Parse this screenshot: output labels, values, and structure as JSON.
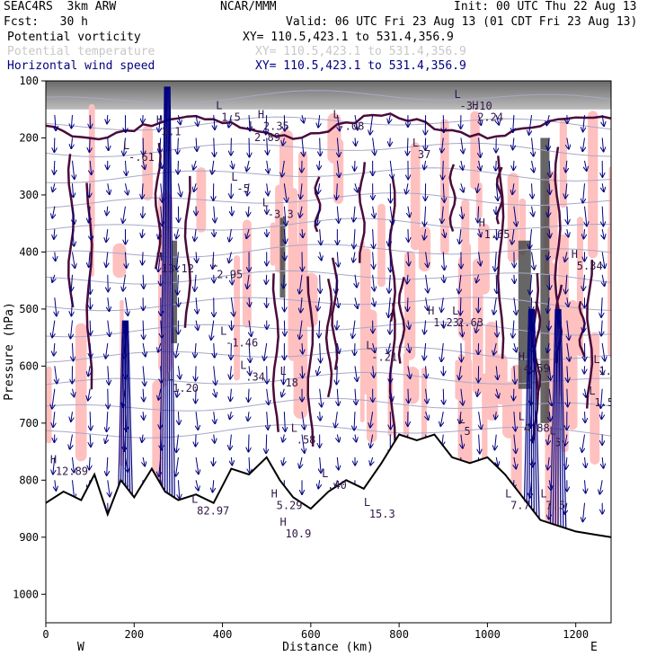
{
  "header": {
    "model": "SEAC4RS  3km ARW",
    "forecast": "Fcst:   30 h",
    "center": "NCAR/MMM",
    "init": "Init: 00 UTC Thu 22 Aug 13",
    "valid": "Valid: 06 UTC Fri 23 Aug 13 (01 CDT Fri 23 Aug 13)"
  },
  "legend": [
    {
      "name": "Potential vorticity",
      "xy": "XY= 110.5,423.1 to 531.4,356.9",
      "color": "#000000"
    },
    {
      "name": "Potential temperature",
      "xy": "XY= 110.5,423.1 to 531.4,356.9",
      "color": "#c8c8c8"
    },
    {
      "name": "Horizontal wind speed",
      "xy": "XY= 110.5,423.1 to 531.4,356.9",
      "color": "#000080"
    }
  ],
  "colors": {
    "pv_positive": "#ffc0c0",
    "pv_contour": "#4a0a3a",
    "theta_contour": "#a8a8c8",
    "wind_vector": "#000080",
    "terrain": "#000000"
  },
  "chart_data": {
    "type": "cross-section",
    "xlabel": "Distance (km)",
    "ylabel": "Pressure (hPa)",
    "xlim": [
      0,
      1280
    ],
    "ylim": [
      1050,
      100
    ],
    "x_ticks": [
      0,
      200,
      400,
      600,
      800,
      1000,
      1200
    ],
    "y_ticks": [
      100,
      200,
      300,
      400,
      500,
      600,
      700,
      800,
      900,
      1000
    ],
    "x_end_labels": {
      "left": "W",
      "right": "E"
    },
    "terrain_surface_hpa": [
      [
        0,
        840
      ],
      [
        40,
        820
      ],
      [
        80,
        835
      ],
      [
        110,
        790
      ],
      [
        140,
        860
      ],
      [
        170,
        800
      ],
      [
        200,
        830
      ],
      [
        240,
        780
      ],
      [
        270,
        820
      ],
      [
        300,
        835
      ],
      [
        340,
        825
      ],
      [
        380,
        840
      ],
      [
        420,
        780
      ],
      [
        460,
        790
      ],
      [
        500,
        760
      ],
      [
        530,
        800
      ],
      [
        560,
        830
      ],
      [
        600,
        850
      ],
      [
        640,
        820
      ],
      [
        680,
        800
      ],
      [
        720,
        815
      ],
      [
        760,
        770
      ],
      [
        800,
        720
      ],
      [
        840,
        730
      ],
      [
        880,
        720
      ],
      [
        920,
        760
      ],
      [
        960,
        770
      ],
      [
        1000,
        760
      ],
      [
        1040,
        790
      ],
      [
        1080,
        830
      ],
      [
        1120,
        870
      ],
      [
        1160,
        880
      ],
      [
        1200,
        890
      ],
      [
        1240,
        895
      ],
      [
        1280,
        900
      ]
    ],
    "annotations": [
      {
        "text": "H",
        "x": 250,
        "y": 175,
        "value": "3.1"
      },
      {
        "text": "L",
        "x": 385,
        "y": 150,
        "value": "1.5"
      },
      {
        "text": "H",
        "x": 480,
        "y": 165,
        "value": "2.35"
      },
      {
        "text": "L",
        "x": 460,
        "y": 185,
        "value": "2.89"
      },
      {
        "text": "L",
        "x": 650,
        "y": 165,
        "value": "-.08"
      },
      {
        "text": "L",
        "x": 925,
        "y": 130,
        "value": "-3.10"
      },
      {
        "text": "H",
        "x": 965,
        "y": 150,
        "value": "2.24"
      },
      {
        "text": "L",
        "x": 175,
        "y": 220,
        "value": "-.61"
      },
      {
        "text": "L",
        "x": 830,
        "y": 215,
        "value": "37"
      },
      {
        "text": "L",
        "x": 420,
        "y": 275,
        "value": "-5"
      },
      {
        "text": "L",
        "x": 490,
        "y": 320,
        "value": "-3.3"
      },
      {
        "text": "H",
        "x": 980,
        "y": 355,
        "value": "1.65"
      },
      {
        "text": "H",
        "x": 250,
        "y": 415,
        "value": "13.12"
      },
      {
        "text": "L",
        "x": 375,
        "y": 425,
        "value": "2.95"
      },
      {
        "text": "H",
        "x": 865,
        "y": 510,
        "value": "1.23"
      },
      {
        "text": "L",
        "x": 920,
        "y": 510,
        "value": "2.63"
      },
      {
        "text": "H",
        "x": 1190,
        "y": 410,
        "value": "5.34"
      },
      {
        "text": "L",
        "x": 395,
        "y": 545,
        "value": "-1.46"
      },
      {
        "text": "L",
        "x": 725,
        "y": 570,
        "value": "-.21"
      },
      {
        "text": "L",
        "x": 440,
        "y": 605,
        "value": ".34"
      },
      {
        "text": "L",
        "x": 530,
        "y": 615,
        "value": "18"
      },
      {
        "text": "H",
        "x": 1070,
        "y": 590,
        "value": "4.59"
      },
      {
        "text": "L",
        "x": 1240,
        "y": 595,
        "value": "1.5"
      },
      {
        "text": "L",
        "x": 275,
        "y": 625,
        "value": "1.20"
      },
      {
        "text": "L",
        "x": 1230,
        "y": 650,
        "value": "1.5"
      },
      {
        "text": "H",
        "x": 10,
        "y": 770,
        "value": "12.89"
      },
      {
        "text": "L",
        "x": 1070,
        "y": 695,
        "value": "4.88"
      },
      {
        "text": "L",
        "x": 555,
        "y": 715,
        "value": ".58"
      },
      {
        "text": "L",
        "x": 935,
        "y": 700,
        "value": "5"
      },
      {
        "text": "L",
        "x": 1140,
        "y": 720,
        "value": "5"
      },
      {
        "text": "L",
        "x": 625,
        "y": 795,
        "value": ".40"
      },
      {
        "text": "H",
        "x": 510,
        "y": 830,
        "value": "5.29"
      },
      {
        "text": "L",
        "x": 330,
        "y": 840,
        "value": "82.97"
      },
      {
        "text": "H",
        "x": 530,
        "y": 880,
        "value": "10.9"
      },
      {
        "text": "L",
        "x": 720,
        "y": 845,
        "value": "15.3"
      },
      {
        "text": "L",
        "x": 1040,
        "y": 830,
        "value": "7.7"
      },
      {
        "text": "L",
        "x": 1120,
        "y": 830,
        "value": "7.5"
      }
    ]
  }
}
